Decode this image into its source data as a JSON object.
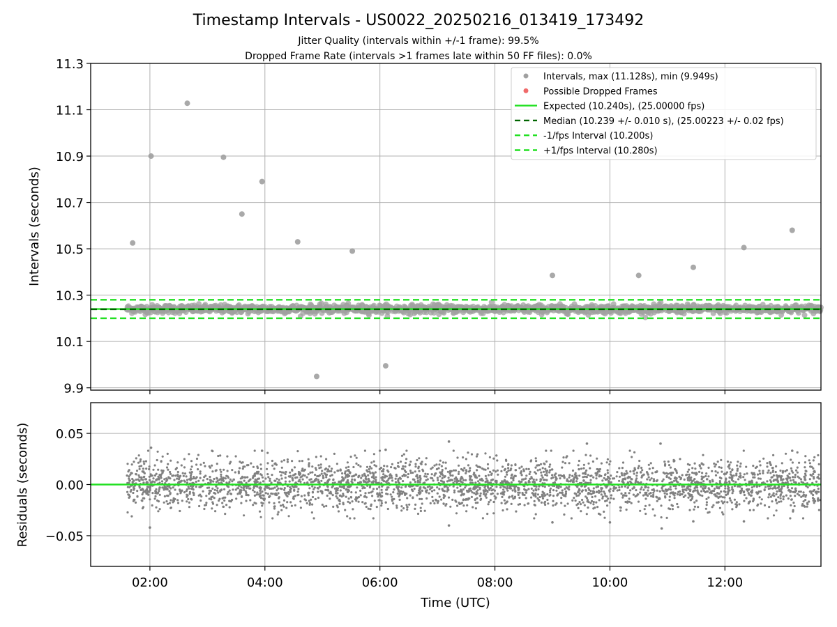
{
  "chart_data": [
    {
      "type": "scatter",
      "title": "Timestamp Intervals - US0022_20250216_013419_173492",
      "subtitle_lines": [
        "Jitter Quality (intervals within +/-1 frame): 99.5%",
        "Dropped Frame Rate (intervals >1 frames late within 50 FF files): 0.0%"
      ],
      "ylabel": "Intervals (seconds)",
      "xlim_hours": [
        0.97,
        13.67
      ],
      "ylim": [
        9.89,
        11.3
      ],
      "yticks": [
        9.9,
        10.1,
        10.3,
        10.5,
        10.7,
        10.9,
        11.1,
        11.3
      ],
      "ytick_labels": [
        "9.9",
        "10.1",
        "10.3",
        "10.5",
        "10.7",
        "10.9",
        "11.1",
        "11.3"
      ],
      "xticks_hours": [
        2,
        4,
        6,
        8,
        10,
        12
      ],
      "grid": true,
      "legend_position": "upper-right",
      "dense_band": {
        "x_range_hours": [
          1.6,
          13.67
        ],
        "center": 10.24,
        "spread": 0.02
      },
      "outliers": [
        {
          "x": 1.7,
          "y": 10.525
        },
        {
          "x": 2.02,
          "y": 10.9
        },
        {
          "x": 2.65,
          "y": 11.128
        },
        {
          "x": 3.28,
          "y": 10.895
        },
        {
          "x": 3.6,
          "y": 10.65
        },
        {
          "x": 3.95,
          "y": 10.79
        },
        {
          "x": 4.57,
          "y": 10.53
        },
        {
          "x": 4.9,
          "y": 9.949
        },
        {
          "x": 5.52,
          "y": 10.49
        },
        {
          "x": 6.1,
          "y": 9.995
        },
        {
          "x": 9.0,
          "y": 10.385
        },
        {
          "x": 10.5,
          "y": 10.385
        },
        {
          "x": 11.45,
          "y": 10.42
        },
        {
          "x": 12.33,
          "y": 10.505
        },
        {
          "x": 13.17,
          "y": 10.58
        }
      ],
      "reference_lines": [
        {
          "name": "Expected",
          "y": 10.24,
          "color": "#22e022",
          "style": "solid"
        },
        {
          "name": "Median",
          "y": 10.239,
          "color": "#006400",
          "style": "dashed"
        },
        {
          "name": "-1/fps Interval",
          "y": 10.2,
          "color": "#22e022",
          "style": "dashed"
        },
        {
          "name": "+1/fps Interval",
          "y": 10.28,
          "color": "#22e022",
          "style": "dashed"
        }
      ],
      "legend": [
        {
          "label": "Intervals, max (11.128s), min (9.949s)",
          "kind": "marker",
          "color": "#a0a0a0"
        },
        {
          "label": "Possible Dropped Frames",
          "kind": "marker",
          "color": "#f06a6a"
        },
        {
          "label": "Expected (10.240s), (25.00000 fps)",
          "kind": "solid",
          "color": "#22e022"
        },
        {
          "label": "Median (10.239 +/- 0.010 s), (25.00223 +/- 0.02 fps)",
          "kind": "dashed",
          "color": "#006400"
        },
        {
          "label": "-1/fps Interval (10.200s)",
          "kind": "dashed",
          "color": "#22e022"
        },
        {
          "label": "+1/fps Interval (10.280s)",
          "kind": "dashed",
          "color": "#22e022"
        }
      ]
    },
    {
      "type": "scatter",
      "ylabel": "Residuals (seconds)",
      "xlabel": "Time (UTC)",
      "xlim_hours": [
        0.97,
        13.67
      ],
      "ylim": [
        -0.08,
        0.08
      ],
      "yticks": [
        -0.05,
        0.0,
        0.05
      ],
      "ytick_labels": [
        "−0.05",
        "0.00",
        "0.05"
      ],
      "xticks_hours": [
        2,
        4,
        6,
        8,
        10,
        12
      ],
      "xtick_labels": [
        "02:00",
        "04:00",
        "06:00",
        "08:00",
        "10:00",
        "12:00"
      ],
      "grid": true,
      "zero_line": {
        "y": 0.0,
        "color": "#22e022"
      },
      "points_color": "#808080",
      "residual_band": {
        "x_range_hours": [
          1.6,
          13.67
        ],
        "spread": 0.012
      },
      "residual_extremes": [
        {
          "x": 2.02,
          "y": 0.036
        },
        {
          "x": 2.0,
          "y": -0.042
        },
        {
          "x": 7.2,
          "y": 0.042
        },
        {
          "x": 7.2,
          "y": -0.04
        },
        {
          "x": 9.6,
          "y": 0.04
        },
        {
          "x": 10.88,
          "y": 0.04
        },
        {
          "x": 10.9,
          "y": -0.043
        },
        {
          "x": 11.45,
          "y": -0.036
        },
        {
          "x": 13.17,
          "y": 0.033
        },
        {
          "x": 3.95,
          "y": 0.033
        },
        {
          "x": 6.1,
          "y": 0.034
        },
        {
          "x": 9.0,
          "y": -0.037
        },
        {
          "x": 10.0,
          "y": -0.037
        },
        {
          "x": 12.33,
          "y": -0.036
        }
      ]
    }
  ]
}
